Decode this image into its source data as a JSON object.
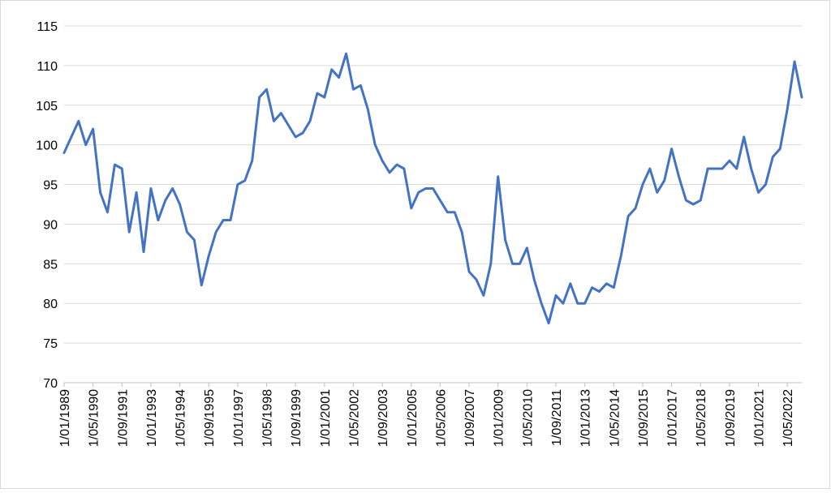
{
  "chart_data": {
    "type": "line",
    "categories": [
      "1/01/1989",
      null,
      null,
      null,
      "1/05/1990",
      null,
      null,
      null,
      "1/09/1991",
      null,
      null,
      null,
      "1/01/1993",
      null,
      null,
      null,
      "1/05/1994",
      null,
      null,
      null,
      "1/09/1995",
      null,
      null,
      null,
      "1/01/1997",
      null,
      null,
      null,
      "1/05/1998",
      null,
      null,
      null,
      "1/09/1999",
      null,
      null,
      null,
      "1/01/2001",
      null,
      null,
      null,
      "1/05/2002",
      null,
      null,
      null,
      "1/09/2003",
      null,
      null,
      null,
      "1/01/2005",
      null,
      null,
      null,
      "1/05/2006",
      null,
      null,
      null,
      "1/09/2007",
      null,
      null,
      null,
      "1/01/2009",
      null,
      null,
      null,
      "1/05/2010",
      null,
      null,
      null,
      "1/09/2011",
      null,
      null,
      null,
      "1/01/2013",
      null,
      null,
      null,
      "1/05/2014",
      null,
      null,
      null,
      "1/09/2015",
      null,
      null,
      null,
      "1/01/2017",
      null,
      null,
      null,
      "1/05/2018",
      null,
      null,
      null,
      "1/09/2019",
      null,
      null,
      null,
      "1/01/2021",
      null,
      null,
      null,
      "1/05/2022",
      null,
      null
    ],
    "values": [
      99,
      101,
      103,
      100,
      102,
      94,
      91.5,
      97.5,
      97,
      89,
      94,
      86.5,
      94.5,
      90.5,
      93,
      94.5,
      92.5,
      89,
      88,
      82.3,
      86,
      89,
      90.5,
      90.5,
      95,
      95.5,
      98,
      106,
      107,
      103,
      104,
      102.5,
      101,
      101.5,
      103,
      106.5,
      106,
      109.5,
      108.5,
      111.5,
      107,
      107.5,
      104.5,
      100,
      98,
      96.5,
      97.5,
      97,
      92,
      94,
      94.5,
      94.5,
      93,
      91.5,
      91.5,
      89,
      84,
      83,
      81,
      85,
      96,
      88,
      85,
      85,
      87,
      83,
      80,
      77.5,
      81,
      80,
      82.5,
      80,
      80,
      82,
      81.5,
      82.5,
      82,
      86,
      91,
      92,
      95,
      97,
      94,
      95.5,
      99.5,
      96,
      93,
      92.5,
      93,
      97,
      97,
      97,
      98,
      97,
      101,
      97,
      94,
      95,
      98.5,
      99.5,
      104.5,
      110.5,
      106
    ],
    "color": "#4472c4",
    "ylim": [
      70,
      115
    ],
    "yticks": [
      70,
      75,
      80,
      85,
      90,
      95,
      100,
      105,
      110,
      115
    ],
    "grid": true
  }
}
